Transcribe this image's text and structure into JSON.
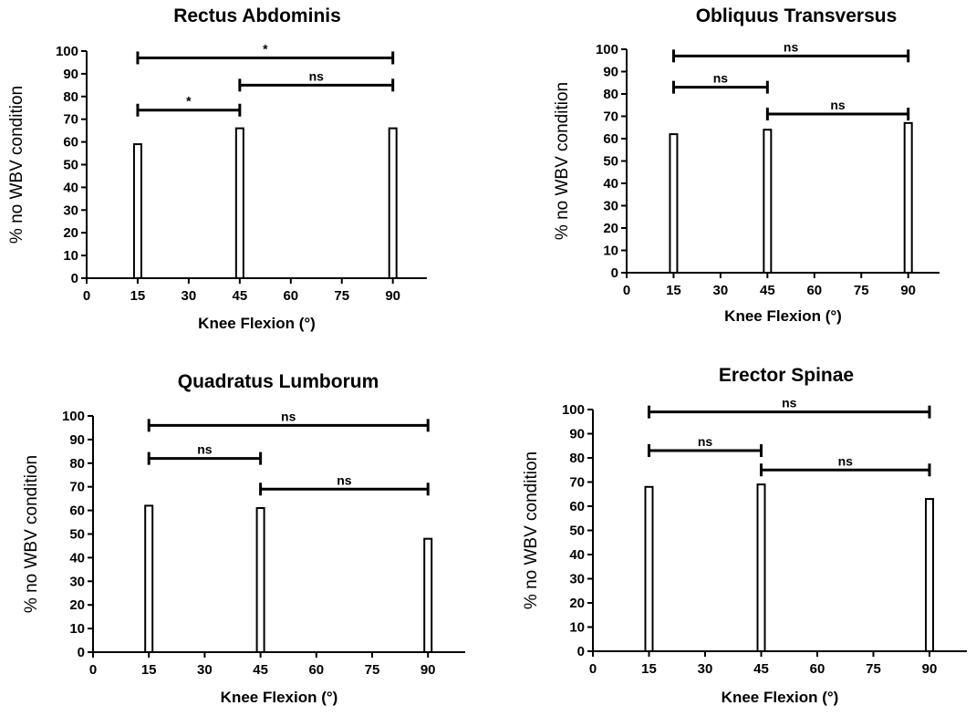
{
  "chart_data": [
    {
      "type": "bar",
      "title": "Rectus Abdominis",
      "xlabel": "Knee Flexion (°)",
      "ylabel": "% no WBV condition",
      "xlim": [
        0,
        100
      ],
      "ylim": [
        0,
        100
      ],
      "xticks": [
        "0",
        "15",
        "30",
        "45",
        "60",
        "75",
        "90"
      ],
      "yticks": [
        "0",
        "10",
        "20",
        "30",
        "40",
        "50",
        "60",
        "70",
        "80",
        "90",
        "100"
      ],
      "x": [
        15,
        45,
        90
      ],
      "values": [
        59,
        66,
        66
      ],
      "comparisons": [
        {
          "from": 15,
          "to": 90,
          "level": 97,
          "label": "*"
        },
        {
          "from": 45,
          "to": 90,
          "level": 85,
          "label": "ns"
        },
        {
          "from": 15,
          "to": 45,
          "level": 74,
          "label": "*"
        }
      ]
    },
    {
      "type": "bar",
      "title": "Obliquus Transversus",
      "xlabel": "Knee Flexion (°)",
      "ylabel": "% no WBV condition",
      "xlim": [
        0,
        100
      ],
      "ylim": [
        0,
        100
      ],
      "xticks": [
        "0",
        "15",
        "30",
        "45",
        "60",
        "75",
        "90"
      ],
      "yticks": [
        "0",
        "10",
        "20",
        "30",
        "40",
        "50",
        "60",
        "70",
        "80",
        "90",
        "100"
      ],
      "x": [
        15,
        45,
        90
      ],
      "values": [
        62,
        64,
        67
      ],
      "comparisons": [
        {
          "from": 15,
          "to": 90,
          "level": 97,
          "label": "ns"
        },
        {
          "from": 15,
          "to": 45,
          "level": 83,
          "label": "ns"
        },
        {
          "from": 45,
          "to": 90,
          "level": 71,
          "label": "ns"
        }
      ]
    },
    {
      "type": "bar",
      "title": "Quadratus Lumborum",
      "xlabel": "Knee Flexion (°)",
      "ylabel": "% no WBV condition",
      "xlim": [
        0,
        100
      ],
      "ylim": [
        0,
        100
      ],
      "xticks": [
        "0",
        "15",
        "30",
        "45",
        "60",
        "75",
        "90"
      ],
      "yticks": [
        "0",
        "10",
        "20",
        "30",
        "40",
        "50",
        "60",
        "70",
        "80",
        "90",
        "100"
      ],
      "x": [
        15,
        45,
        90
      ],
      "values": [
        62,
        61,
        48
      ],
      "comparisons": [
        {
          "from": 15,
          "to": 90,
          "level": 96,
          "label": "ns"
        },
        {
          "from": 15,
          "to": 45,
          "level": 82,
          "label": "ns"
        },
        {
          "from": 45,
          "to": 90,
          "level": 69,
          "label": "ns"
        }
      ]
    },
    {
      "type": "bar",
      "title": "Erector Spinae",
      "xlabel": "Knee Flexion (°)",
      "ylabel": "% no WBV condition",
      "xlim": [
        0,
        100
      ],
      "ylim": [
        0,
        100
      ],
      "xticks": [
        "0",
        "15",
        "30",
        "45",
        "60",
        "75",
        "90"
      ],
      "yticks": [
        "0",
        "10",
        "20",
        "30",
        "40",
        "50",
        "60",
        "70",
        "80",
        "90",
        "100"
      ],
      "x": [
        15,
        45,
        90
      ],
      "values": [
        68,
        69,
        63
      ],
      "comparisons": [
        {
          "from": 15,
          "to": 90,
          "level": 99,
          "label": "ns"
        },
        {
          "from": 15,
          "to": 45,
          "level": 83,
          "label": "ns"
        },
        {
          "from": 45,
          "to": 90,
          "level": 75,
          "label": "ns"
        }
      ]
    }
  ]
}
